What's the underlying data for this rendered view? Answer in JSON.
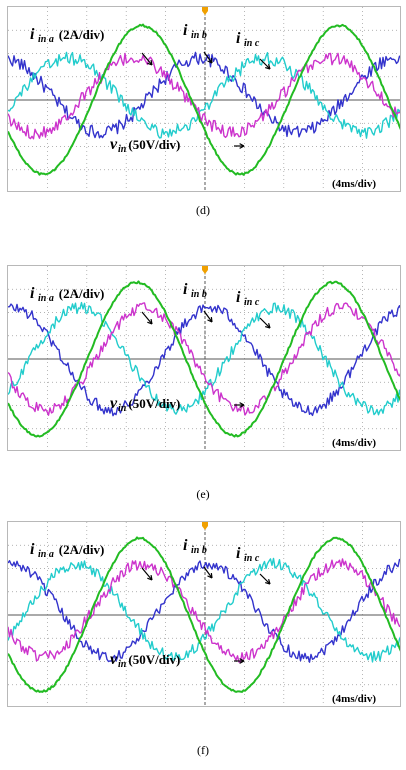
{
  "colors": {
    "grid": "#9a9a9a",
    "axis": "#555555",
    "trigger_marker": "#f0a000",
    "phase_a": "#3333cc",
    "phase_b": "#22cccc",
    "phase_c": "#cc33cc",
    "voltage": "#22bb22"
  },
  "chart_data": [
    {
      "type": "line",
      "caption": "(d)",
      "time_scale": "(4ms/div)",
      "grid": true,
      "divisions": {
        "x": 10,
        "y": 8
      },
      "labels": {
        "ia_main": "i",
        "ia_sub": "in a",
        "ia_scale": "(2A/div)",
        "ib_main": "i",
        "ib_sub": "in b",
        "ic_main": "i",
        "ic_sub": "in c",
        "v_main": "v",
        "v_sub": "in",
        "v_scale": "(50V/div)"
      },
      "series": [
        {
          "name": "i_in a",
          "color": "phase_a",
          "amplitude_div": 1.6,
          "offset_div": 0.2,
          "period_div": 5.0,
          "phase_deg": 100,
          "noise": 0.35
        },
        {
          "name": "i_in b",
          "color": "phase_b",
          "amplitude_div": 1.6,
          "offset_div": 0.2,
          "period_div": 5.0,
          "phase_deg": -20,
          "noise": 0.35
        },
        {
          "name": "i_in c",
          "color": "phase_c",
          "amplitude_div": 1.6,
          "offset_div": 0.2,
          "period_div": 5.0,
          "phase_deg": 220,
          "noise": 0.35
        },
        {
          "name": "v_in",
          "color": "voltage",
          "amplitude_div": 3.2,
          "offset_div": 0.0,
          "period_div": 5.0,
          "phase_deg": 205,
          "noise": 0.06
        }
      ]
    },
    {
      "type": "line",
      "caption": "(e)",
      "time_scale": "(4ms/div)",
      "grid": true,
      "divisions": {
        "x": 10,
        "y": 8
      },
      "labels": {
        "ia_main": "i",
        "ia_sub": "in a",
        "ia_scale": "(2A/div)",
        "ib_main": "i",
        "ib_sub": "in b",
        "ic_main": "i",
        "ic_sub": "in c",
        "v_main": "v",
        "v_sub": "in",
        "v_scale": "(50V/div)"
      },
      "series": [
        {
          "name": "i_in a",
          "color": "phase_a",
          "amplitude_div": 2.2,
          "offset_div": 0.0,
          "period_div": 5.0,
          "phase_deg": 80,
          "noise": 0.3
        },
        {
          "name": "i_in b",
          "color": "phase_b",
          "amplitude_div": 2.2,
          "offset_div": 0.0,
          "period_div": 5.0,
          "phase_deg": -40,
          "noise": 0.3
        },
        {
          "name": "i_in c",
          "color": "phase_c",
          "amplitude_div": 2.2,
          "offset_div": 0.0,
          "period_div": 5.0,
          "phase_deg": 200,
          "noise": 0.3
        },
        {
          "name": "v_in",
          "color": "voltage",
          "amplitude_div": 3.3,
          "offset_div": 0.0,
          "period_div": 5.0,
          "phase_deg": 215,
          "noise": 0.06
        }
      ]
    },
    {
      "type": "line",
      "caption": "(f)",
      "time_scale": "(4ms/div)",
      "grid": true,
      "divisions": {
        "x": 10,
        "y": 8
      },
      "labels": {
        "ia_main": "i",
        "ia_sub": "in a",
        "ia_scale": "(2A/div)",
        "ib_main": "i",
        "ib_sub": "in b",
        "ic_main": "i",
        "ic_sub": "in c",
        "v_main": "v",
        "v_sub": "in",
        "v_scale": "(50V/div)"
      },
      "series": [
        {
          "name": "i_in a",
          "color": "phase_a",
          "amplitude_div": 2.0,
          "offset_div": 0.2,
          "period_div": 5.0,
          "phase_deg": 85,
          "noise": 0.3
        },
        {
          "name": "i_in b",
          "color": "phase_b",
          "amplitude_div": 2.0,
          "offset_div": 0.2,
          "period_div": 5.0,
          "phase_deg": -35,
          "noise": 0.3
        },
        {
          "name": "i_in c",
          "color": "phase_c",
          "amplitude_div": 2.0,
          "offset_div": 0.2,
          "period_div": 5.0,
          "phase_deg": 205,
          "noise": 0.3
        },
        {
          "name": "v_in",
          "color": "voltage",
          "amplitude_div": 3.3,
          "offset_div": 0.0,
          "period_div": 5.0,
          "phase_deg": 210,
          "noise": 0.06
        }
      ]
    }
  ]
}
